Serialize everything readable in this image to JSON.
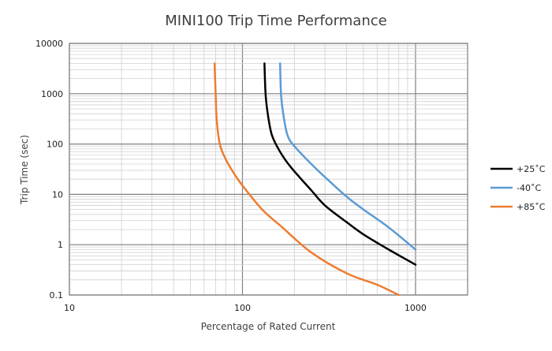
{
  "chart_data": {
    "type": "line",
    "title": "MINI100 Trip Time Performance",
    "xlabel": "Percentage of Rated Current",
    "ylabel": "Trip Time (sec)",
    "x_scale": "log",
    "y_scale": "log",
    "xlim": [
      10,
      2000
    ],
    "ylim": [
      0.1,
      10000
    ],
    "x_ticks": [
      "10",
      "100",
      "1000"
    ],
    "y_ticks": [
      "10000",
      "1000",
      "100",
      "10",
      "1",
      "0.1"
    ],
    "grid": true,
    "legend_position": "right",
    "series": [
      {
        "name": "+25˚C",
        "color": "#000000",
        "points": [
          [
            134,
            4000
          ],
          [
            136,
            1000
          ],
          [
            140,
            400
          ],
          [
            148,
            150
          ],
          [
            165,
            70
          ],
          [
            190,
            35
          ],
          [
            250,
            12
          ],
          [
            300,
            6
          ],
          [
            400,
            2.8
          ],
          [
            500,
            1.6
          ],
          [
            700,
            0.8
          ],
          [
            1000,
            0.4
          ]
        ]
      },
      {
        "name": "-40˚C",
        "color": "#5b9bd5",
        "points": [
          [
            165,
            4000
          ],
          [
            167,
            1000
          ],
          [
            172,
            400
          ],
          [
            182,
            150
          ],
          [
            200,
            90
          ],
          [
            250,
            40
          ],
          [
            300,
            22
          ],
          [
            400,
            9
          ],
          [
            500,
            5
          ],
          [
            700,
            2.2
          ],
          [
            1000,
            0.8
          ]
        ]
      },
      {
        "name": "+85˚C",
        "color": "#ed7d31",
        "points": [
          [
            69,
            4000
          ],
          [
            70,
            1000
          ],
          [
            71,
            300
          ],
          [
            74,
            100
          ],
          [
            80,
            50
          ],
          [
            90,
            25
          ],
          [
            100,
            15
          ],
          [
            130,
            5
          ],
          [
            170,
            2.2
          ],
          [
            250,
            0.7
          ],
          [
            400,
            0.27
          ],
          [
            600,
            0.16
          ],
          [
            800,
            0.1
          ]
        ]
      }
    ]
  }
}
